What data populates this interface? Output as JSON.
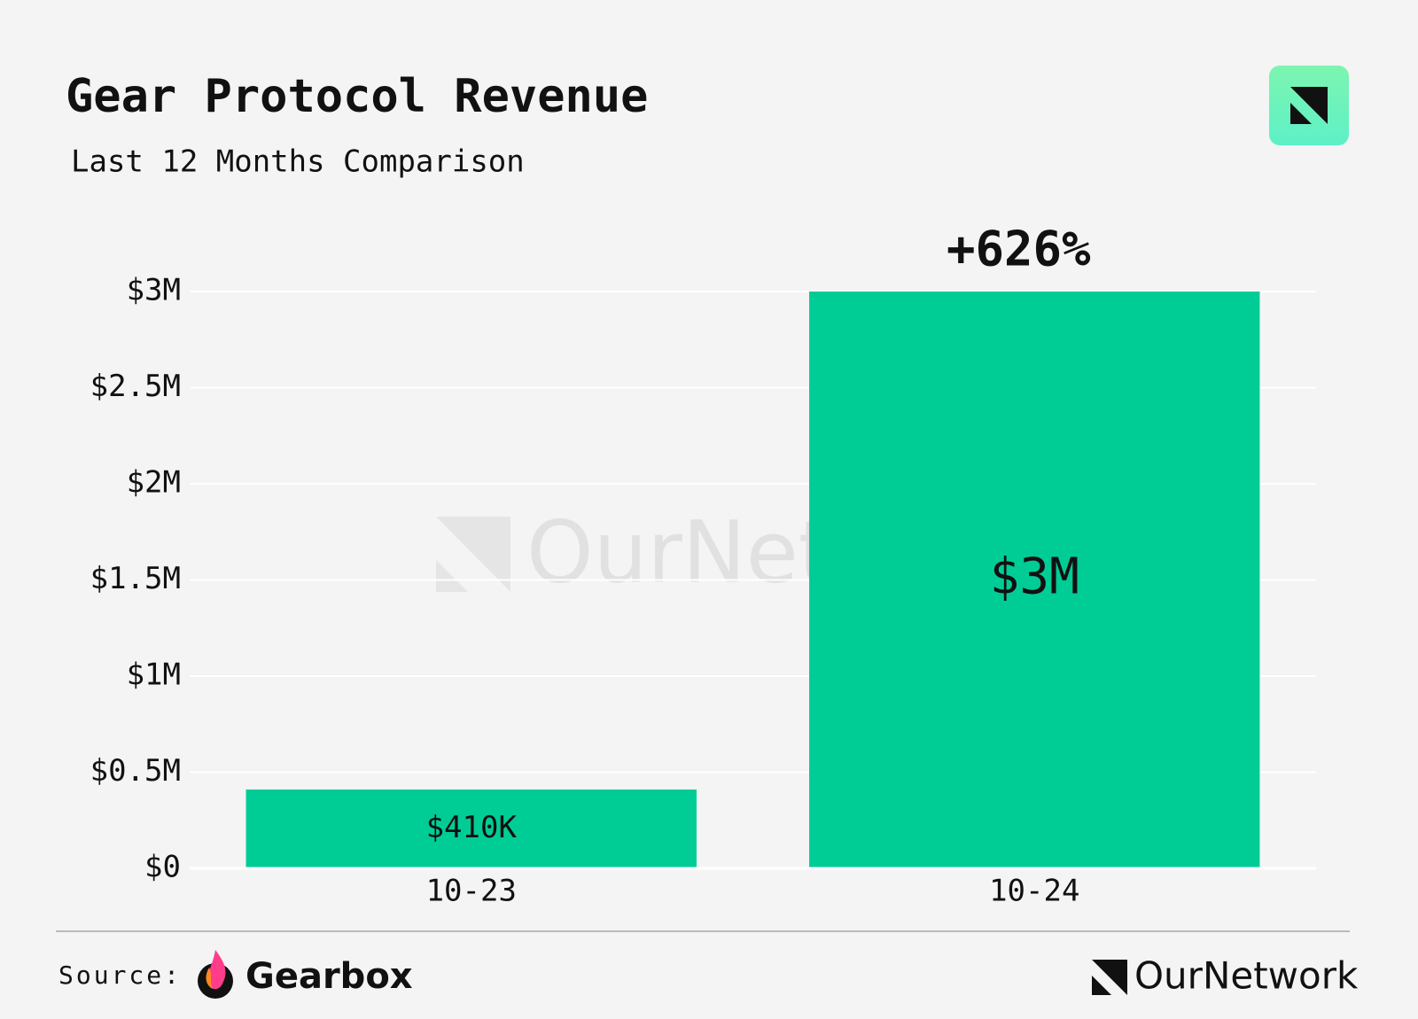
{
  "chart_data": {
    "type": "bar",
    "title": "Gear Protocol Revenue",
    "subtitle": "Last 12 Months Comparison",
    "categories": [
      "10-23",
      "10-24"
    ],
    "values": [
      410000,
      3000000
    ],
    "value_labels": [
      "$410K",
      "$3M"
    ],
    "color": "#00cc96",
    "ylim": [
      0,
      3000000
    ],
    "yticks": [
      {
        "value": 0,
        "label": "$0"
      },
      {
        "value": 500000,
        "label": "$0.5M"
      },
      {
        "value": 1000000,
        "label": "$1M"
      },
      {
        "value": 1500000,
        "label": "$1.5M"
      },
      {
        "value": 2000000,
        "label": "$2M"
      },
      {
        "value": 2500000,
        "label": "$2.5M"
      },
      {
        "value": 3000000,
        "label": "$3M"
      }
    ],
    "grid": true,
    "annotation": "+626%"
  },
  "watermark": "OurNetwork",
  "footer": {
    "source_label": "Source:",
    "source_name": "Gearbox",
    "brand": "OurNetwork"
  }
}
